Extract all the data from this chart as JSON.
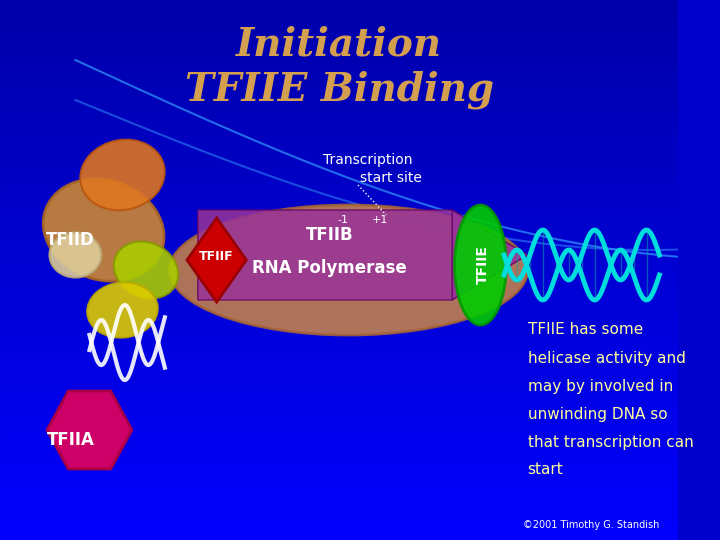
{
  "title_line1": "Initiation",
  "title_line2": "TFIIE Binding",
  "title_color": "#D4A050",
  "background_color": "#0000CC",
  "bg_gradient_top": "#0000AA",
  "bg_gradient_bottom": "#0000FF",
  "label_TFIID": "TFIID",
  "label_TFIIF": "TFIIF",
  "label_TFIIB": "TFIIB",
  "label_RNA_pol": "RNA Polymerase",
  "label_TFIIA": "TFIIA",
  "label_TFIIE": "TFIIE",
  "label_transcription": "Transcription",
  "label_start_site": "start site",
  "description": "TFIIE has some helicase activity and may by involved in unwinding DNA so that transcription can start",
  "copyright": "©2001 Timothy G. Standish",
  "desc_color": "#FFFF99",
  "white": "#FFFFFF",
  "curve_color": "#3399FF",
  "dna_color": "#00CCCC",
  "green_tfiie": "#00CC00",
  "magenta_tfiia": "#CC0066",
  "orange_main_ellipse": "#CC8844",
  "purple_arrow": "#993399",
  "red_diamond": "#CC0000",
  "yellow_ellipse": "#CCCC00",
  "olive_ellipse": "#99AA00",
  "tan_ellipse": "#CC9966",
  "orange_tfiid": "#CC6600"
}
